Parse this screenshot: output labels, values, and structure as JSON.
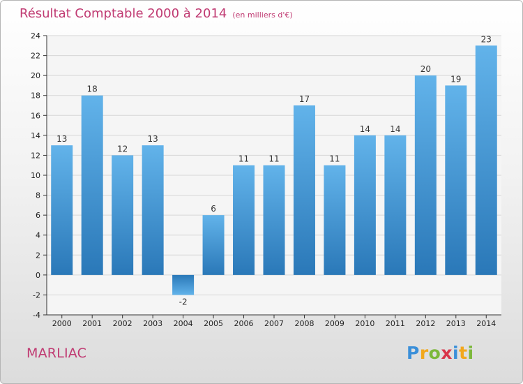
{
  "title": "Résultat Comptable 2000 à 2014",
  "subtitle": "(en milliers d'€)",
  "place": "MARLIAC",
  "logo": {
    "text": "Proxiti",
    "letters": [
      {
        "ch": "P",
        "color": "#3a8fd9"
      },
      {
        "ch": "r",
        "color": "#f2a81d"
      },
      {
        "ch": "o",
        "color": "#7cb83b"
      },
      {
        "ch": "x",
        "color": "#d9354a"
      },
      {
        "ch": "i",
        "color": "#3a8fd9"
      },
      {
        "ch": "t",
        "color": "#f2a81d"
      },
      {
        "ch": "i",
        "color": "#7cb83b"
      }
    ]
  },
  "colors": {
    "accent": "#c03a72",
    "bar_top": "#62b3ea",
    "bar_bottom": "#2a78b8",
    "plot_bg": "#f5f5f5"
  },
  "chart_data": {
    "type": "bar",
    "title": "Résultat Comptable 2000 à 2014",
    "xlabel": "",
    "ylabel": "",
    "categories": [
      "2000",
      "2001",
      "2002",
      "2003",
      "2004",
      "2005",
      "2006",
      "2007",
      "2008",
      "2009",
      "2010",
      "2011",
      "2012",
      "2013",
      "2014"
    ],
    "values": [
      13,
      18,
      12,
      13,
      -2,
      6,
      11,
      11,
      17,
      11,
      14,
      14,
      20,
      19,
      23
    ],
    "ylim": [
      -4,
      24
    ],
    "yticks": [
      -4,
      -2,
      0,
      2,
      4,
      6,
      8,
      10,
      12,
      14,
      16,
      18,
      20,
      22,
      24
    ],
    "grid": true
  }
}
